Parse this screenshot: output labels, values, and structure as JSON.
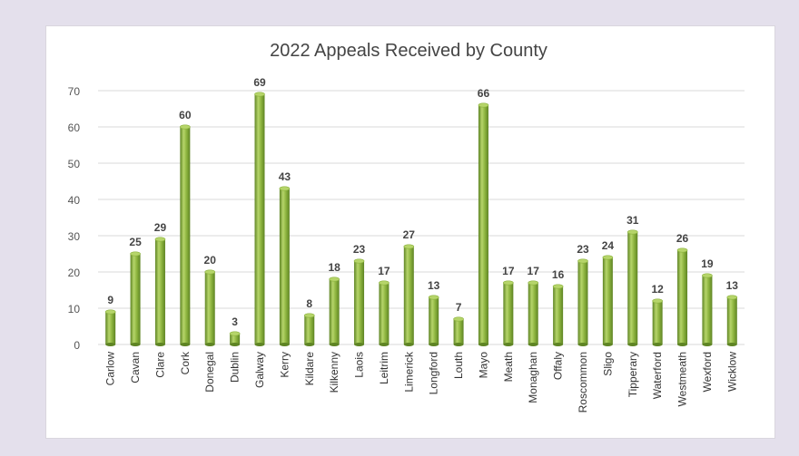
{
  "chart_data": {
    "type": "bar",
    "title": "2022 Appeals Received by County",
    "categories": [
      "Carlow",
      "Cavan",
      "Clare",
      "Cork",
      "Donegal",
      "Dublin",
      "Galway",
      "Kerry",
      "Kildare",
      "Kilkenny",
      "Laois",
      "Leitrim",
      "Limerick",
      "Longford",
      "Louth",
      "Mayo",
      "Meath",
      "Monaghan",
      "Offaly",
      "Roscommon",
      "Sligo",
      "Tipperary",
      "Waterford",
      "Westmeath",
      "Wexford",
      "Wicklow"
    ],
    "values": [
      9,
      25,
      29,
      60,
      20,
      3,
      69,
      43,
      8,
      18,
      23,
      17,
      27,
      13,
      7,
      66,
      17,
      17,
      16,
      23,
      24,
      31,
      12,
      26,
      19,
      13
    ],
    "ylim": [
      0,
      70
    ],
    "yticks": [
      0,
      10,
      20,
      30,
      40,
      50,
      60,
      70
    ],
    "grid": true,
    "legend": "none",
    "colors": {
      "bar": "#8cb33e",
      "bar_highlight": "#b6d56a",
      "bar_shadow": "#5e8424",
      "grid": "#d9d9d9"
    }
  }
}
